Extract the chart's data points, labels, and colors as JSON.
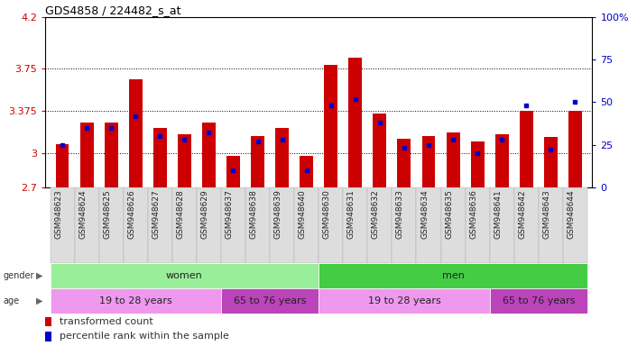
{
  "title": "GDS4858 / 224482_s_at",
  "samples": [
    "GSM948623",
    "GSM948624",
    "GSM948625",
    "GSM948626",
    "GSM948627",
    "GSM948628",
    "GSM948629",
    "GSM948637",
    "GSM948638",
    "GSM948639",
    "GSM948640",
    "GSM948630",
    "GSM948631",
    "GSM948632",
    "GSM948633",
    "GSM948634",
    "GSM948635",
    "GSM948636",
    "GSM948641",
    "GSM948642",
    "GSM948643",
    "GSM948644"
  ],
  "red_values": [
    3.08,
    3.27,
    3.27,
    3.65,
    3.22,
    3.17,
    3.27,
    2.98,
    3.15,
    3.22,
    2.98,
    3.78,
    3.84,
    3.35,
    3.13,
    3.15,
    3.18,
    3.1,
    3.17,
    3.375,
    3.14,
    3.375
  ],
  "blue_percentile": [
    25,
    35,
    35,
    42,
    30,
    28,
    32,
    10,
    27,
    28,
    10,
    48,
    52,
    38,
    23,
    25,
    28,
    20,
    28,
    48,
    22,
    50
  ],
  "ylim_left": [
    2.7,
    4.2
  ],
  "ylim_right": [
    0,
    100
  ],
  "yticks_left": [
    2.7,
    3.0,
    3.375,
    3.75,
    4.2
  ],
  "yticks_right": [
    0,
    25,
    50,
    75,
    100
  ],
  "ytick_labels_left": [
    "2.7",
    "3",
    "3.375",
    "3.75",
    "4.2"
  ],
  "ytick_labels_right": [
    "0",
    "25",
    "50",
    "75",
    "100%"
  ],
  "baseline": 2.7,
  "bar_color": "#cc0000",
  "dot_color": "#0000cc",
  "left_axis_color": "#cc0000",
  "right_axis_color": "#0000cc",
  "grid_yticks": [
    3.0,
    3.375,
    3.75
  ],
  "bg_color": "#ffffff",
  "gender_groups": [
    {
      "label": "women",
      "start": 0,
      "end": 10,
      "color": "#99ee99"
    },
    {
      "label": "men",
      "start": 11,
      "end": 21,
      "color": "#44cc44"
    }
  ],
  "age_groups": [
    {
      "label": "19 to 28 years",
      "start": 0,
      "end": 6,
      "color": "#ee99ee"
    },
    {
      "label": "65 to 76 years",
      "start": 7,
      "end": 10,
      "color": "#bb44bb"
    },
    {
      "label": "19 to 28 years",
      "start": 11,
      "end": 17,
      "color": "#ee99ee"
    },
    {
      "label": "65 to 76 years",
      "start": 18,
      "end": 21,
      "color": "#bb44bb"
    }
  ],
  "legend_items": [
    {
      "label": "transformed count",
      "color": "#cc0000"
    },
    {
      "label": "percentile rank within the sample",
      "color": "#0000cc"
    }
  ],
  "bar_width": 0.55,
  "tick_fontsize": 8,
  "label_fontsize": 8,
  "sample_fontsize": 6.5
}
